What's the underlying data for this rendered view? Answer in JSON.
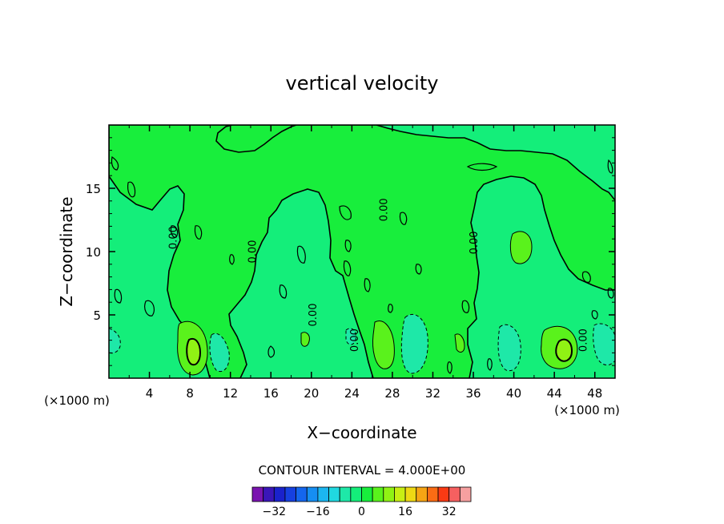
{
  "chart_data": {
    "type": "contour",
    "title": "vertical velocity",
    "xlabel": "X−coordinate",
    "ylabel": "Z−coordinate",
    "x_unit_left": "(×1000 m)",
    "x_unit_right": "(×1000 m)",
    "xlim": [
      0,
      50
    ],
    "ylim": [
      0,
      20
    ],
    "x_ticks": [
      "4",
      "8",
      "12",
      "16",
      "20",
      "24",
      "28",
      "32",
      "36",
      "40",
      "44",
      "48"
    ],
    "y_ticks": [
      "5",
      "10",
      "15"
    ],
    "contour_interval_text": "CONTOUR INTERVAL = 4.000E+00",
    "contour_labels": [
      {
        "text": "0.00",
        "x": 6.7,
        "z": 11.1
      },
      {
        "text": "0.00",
        "x": 14.5,
        "z": 10.0
      },
      {
        "text": "0.00",
        "x": 20.5,
        "z": 5.0
      },
      {
        "text": "0.00",
        "x": 24.6,
        "z": 3.0
      },
      {
        "text": "0.00",
        "x": 27.5,
        "z": 13.3
      },
      {
        "text": "0.00",
        "x": 36.4,
        "z": 10.7
      },
      {
        "text": "0.00",
        "x": 47.2,
        "z": 3.0
      }
    ],
    "cells": [
      {
        "x": 8.3,
        "z": 2.3,
        "value": 12
      },
      {
        "x": 8.3,
        "z": 2.3,
        "value": 16
      },
      {
        "x": 45.3,
        "z": 2.6,
        "value": 12
      },
      {
        "x": 45.3,
        "z": 2.6,
        "value": 16
      },
      {
        "x": 27.0,
        "z": 2.8,
        "value": 8
      },
      {
        "x": 30.5,
        "z": 2.8,
        "value": -4
      },
      {
        "x": 38.5,
        "z": 3.0,
        "value": -4
      },
      {
        "x": 11.3,
        "z": 2.2,
        "value": -4
      },
      {
        "x": 48.5,
        "z": 3.0,
        "value": -4
      },
      {
        "x": 40.4,
        "z": 10.5,
        "value": 8
      },
      {
        "x": 34.5,
        "z": 3.0,
        "value": 4
      }
    ],
    "colorbar": {
      "levels": [
        -36,
        -32,
        -28,
        -24,
        -20,
        -16,
        -12,
        -8,
        -4,
        0,
        4,
        8,
        12,
        16,
        20,
        24,
        28,
        32,
        36
      ],
      "colors": [
        "#7a14b0",
        "#3a16b8",
        "#1a22cc",
        "#1640e0",
        "#1466ee",
        "#168ef2",
        "#1cb6f0",
        "#20d8e0",
        "#1ee8a8",
        "#14ee7a",
        "#18ee3c",
        "#5af21c",
        "#90f214",
        "#c8ee14",
        "#eed814",
        "#f6a414",
        "#fa6c14",
        "#fa3a14",
        "#f66060",
        "#f6a0a0"
      ],
      "tick_labels": [
        {
          "label": "−32",
          "value": -32
        },
        {
          "label": "−16",
          "value": -16
        },
        {
          "label": "0",
          "value": 0
        },
        {
          "label": "16",
          "value": 16
        },
        {
          "label": "32",
          "value": 32
        }
      ]
    }
  }
}
